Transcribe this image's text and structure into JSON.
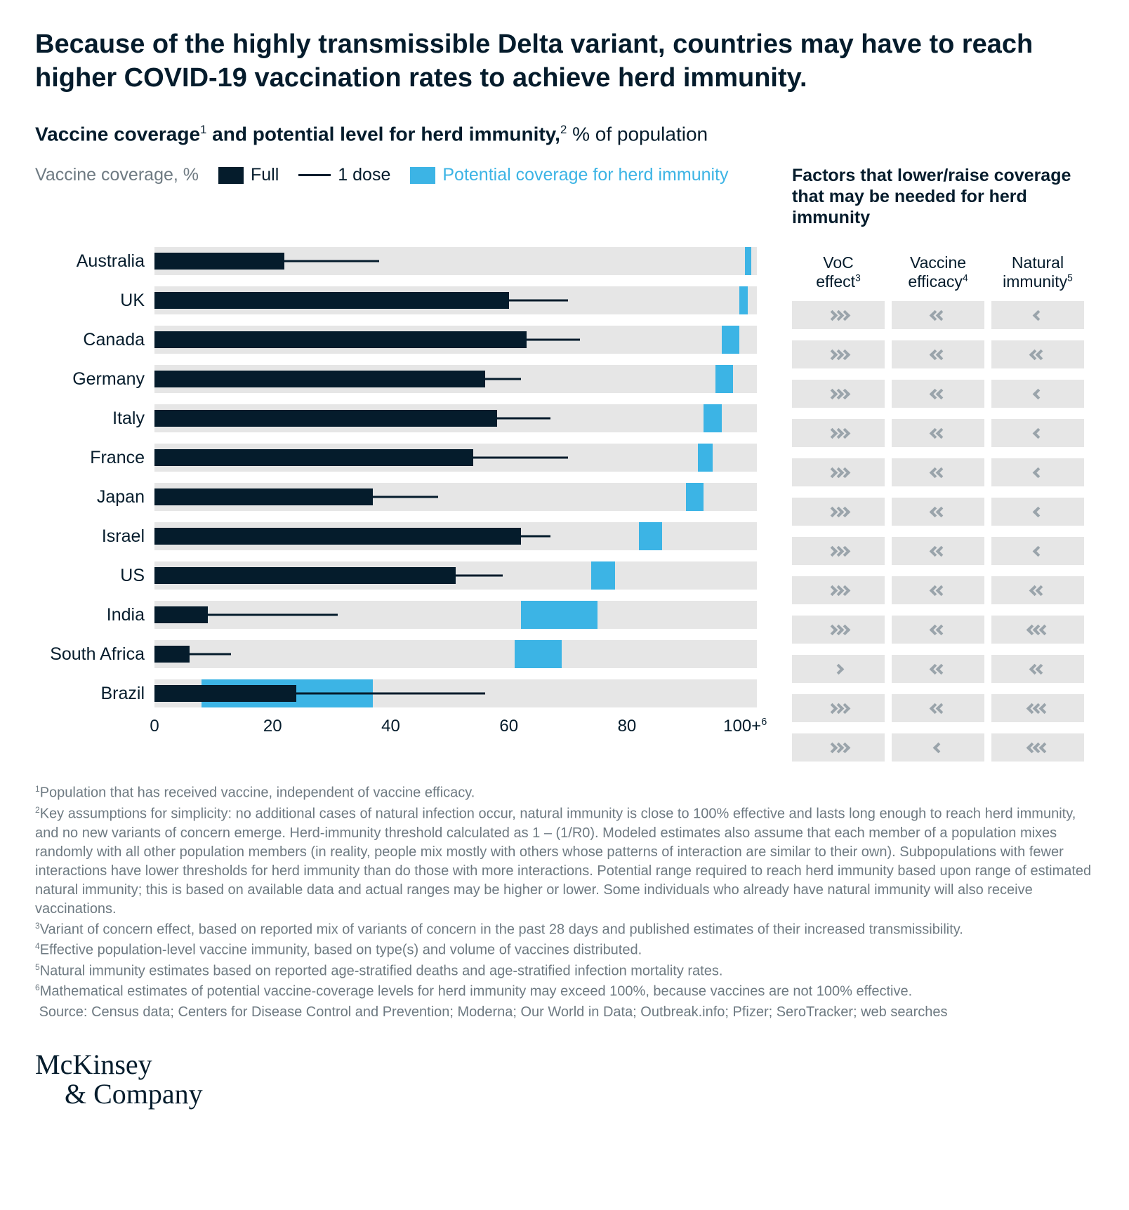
{
  "title": "Because of the highly transmissible Delta variant, countries may have to reach higher COVID-19 vaccination rates to achieve herd immunity.",
  "subtitle_bold": "Vaccine coverage",
  "subtitle_sup1": "1",
  "subtitle_mid": " and potential level for herd immunity,",
  "subtitle_sup2": "2",
  "subtitle_tail": " % of population",
  "legend_prefix": "Vaccine coverage, %",
  "legend_full": "Full",
  "legend_dose": "1 dose",
  "legend_herd": "Potential coverage for herd immunity",
  "factors_header": "Factors that lower/raise coverage that may be needed for herd immunity",
  "factor_cols": {
    "voc_l1": "VoC",
    "voc_l2": "effect",
    "voc_sup": "3",
    "eff_l1": "Vaccine",
    "eff_l2": "efficacy",
    "eff_sup": "4",
    "nat_l1": "Natural",
    "nat_l2": "immunity",
    "nat_sup": "5"
  },
  "chart": {
    "xmax": 102,
    "ticks": [
      {
        "v": 0,
        "label": "0"
      },
      {
        "v": 20,
        "label": "20"
      },
      {
        "v": 40,
        "label": "40"
      },
      {
        "v": 60,
        "label": "60"
      },
      {
        "v": 80,
        "label": "80"
      },
      {
        "v": 100,
        "label": "100+"
      }
    ],
    "tick_sup": "6",
    "colors": {
      "track_bg": "#e6e6e6",
      "full": "#051c2c",
      "dose": "#051c2c",
      "herd": "#3cb4e5",
      "chevron": "#9aa4ab",
      "text": "#051c2c",
      "muted": "#6e7a82",
      "background": "#ffffff"
    },
    "rows": [
      {
        "c": "Australia",
        "full": 22,
        "dose": 38,
        "herd_lo": 100,
        "herd_hi": 101,
        "voc": 3,
        "eff": -2,
        "nat": -1
      },
      {
        "c": "UK",
        "full": 60,
        "dose": 70,
        "herd_lo": 99,
        "herd_hi": 100.5,
        "voc": 3,
        "eff": -2,
        "nat": -2
      },
      {
        "c": "Canada",
        "full": 63,
        "dose": 72,
        "herd_lo": 96,
        "herd_hi": 99,
        "voc": 3,
        "eff": -2,
        "nat": -1
      },
      {
        "c": "Germany",
        "full": 56,
        "dose": 62,
        "herd_lo": 95,
        "herd_hi": 98,
        "voc": 3,
        "eff": -2,
        "nat": -1
      },
      {
        "c": "Italy",
        "full": 58,
        "dose": 67,
        "herd_lo": 93,
        "herd_hi": 96,
        "voc": 3,
        "eff": -2,
        "nat": -1
      },
      {
        "c": "France",
        "full": 54,
        "dose": 70,
        "herd_lo": 92,
        "herd_hi": 94.5,
        "voc": 3,
        "eff": -2,
        "nat": -1
      },
      {
        "c": "Japan",
        "full": 37,
        "dose": 48,
        "herd_lo": 90,
        "herd_hi": 93,
        "voc": 3,
        "eff": -2,
        "nat": -1
      },
      {
        "c": "Israel",
        "full": 62,
        "dose": 67,
        "herd_lo": 82,
        "herd_hi": 86,
        "voc": 3,
        "eff": -2,
        "nat": -2
      },
      {
        "c": "US",
        "full": 51,
        "dose": 59,
        "herd_lo": 74,
        "herd_hi": 78,
        "voc": 3,
        "eff": -2,
        "nat": -3
      },
      {
        "c": "India",
        "full": 9,
        "dose": 31,
        "herd_lo": 62,
        "herd_hi": 75,
        "voc": 1,
        "eff": -2,
        "nat": -2
      },
      {
        "c": "South Africa",
        "full": 6,
        "dose": 13,
        "herd_lo": 61,
        "herd_hi": 69,
        "voc": 3,
        "eff": -2,
        "nat": -3
      },
      {
        "c": "Brazil",
        "full": 24,
        "dose": 56,
        "herd_lo": 8,
        "herd_hi": 37,
        "voc": 3,
        "eff": -1,
        "nat": -3
      }
    ]
  },
  "footnotes": {
    "n1": "Population that has received vaccine, independent of vaccine efficacy.",
    "n2": "Key assumptions for simplicity: no additional cases of natural infection occur, natural immunity is close to 100% effective and lasts long enough to reach herd immunity, and no new variants of concern emerge. Herd-immunity threshold calculated as 1 – (1/R0). Modeled estimates also assume that each member of a population mixes randomly with all other population members (in reality, people mix mostly with others whose patterns of interaction are similar to their own). Subpopulations with fewer interactions have lower thresholds for herd immunity than do those with more interactions. Potential range required to reach herd immunity based upon range of estimated natural immunity; this is based on available data and actual ranges may be higher or lower. Some individuals who already have natural immunity will also receive vaccinations.",
    "n3": "Variant of concern effect, based on reported mix of variants of concern in the past 28 days and published estimates of their increased transmissibility.",
    "n4": "Effective population-level vaccine immunity, based on type(s) and volume of vaccines distributed.",
    "n5": "Natural immunity estimates based on reported age-stratified deaths and age-stratified infection mortality rates.",
    "n6": "Mathematical estimates of potential vaccine-coverage levels for herd immunity may exceed 100%, because vaccines are not 100% effective.",
    "src_label": "Source:",
    "src": "Census data; Centers for Disease Control and Prevention; Moderna; Our World in Data; Outbreak.info; Pfizer; SeroTracker; web searches"
  },
  "brand_l1": "McKinsey",
  "brand_l2": "& Company"
}
